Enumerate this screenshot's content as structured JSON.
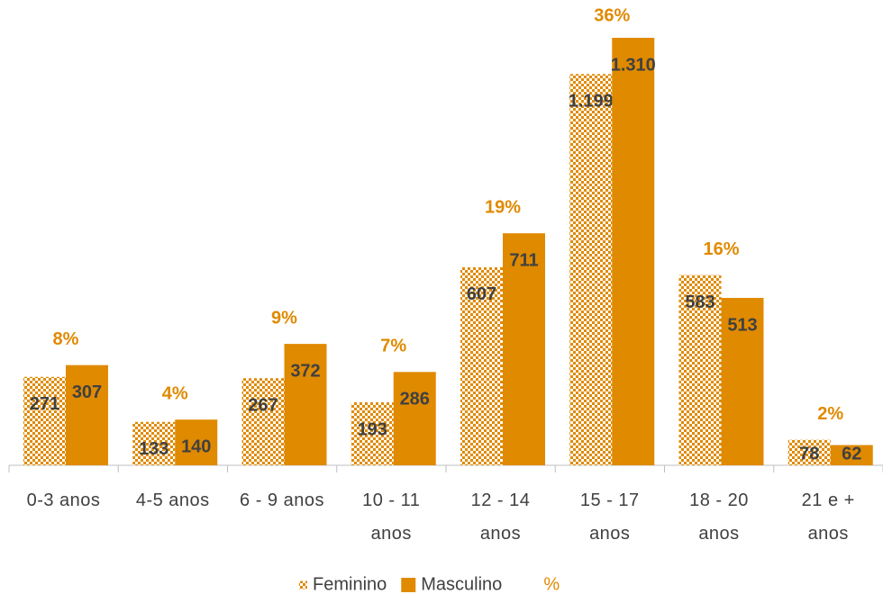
{
  "chart_data": {
    "type": "bar",
    "categories": [
      "0-3 anos",
      "4-5 anos",
      "6 - 9 anos",
      "10 - 11\nanos",
      "12 - 14\nanos",
      "15 - 17\nanos",
      "18 - 20\nanos",
      "21 e +\nanos"
    ],
    "series": [
      {
        "name": "Feminino",
        "color": "#e08a00",
        "pattern": "checker",
        "values": [
          271,
          133,
          267,
          193,
          607,
          1199,
          583,
          78
        ],
        "value_labels": [
          "271",
          "133",
          "267",
          "193",
          "607",
          "1.199",
          "583",
          "78"
        ]
      },
      {
        "name": "Masculino",
        "color": "#e08a00",
        "values": [
          307,
          140,
          372,
          286,
          711,
          1310,
          513,
          62
        ],
        "value_labels": [
          "307",
          "140",
          "372",
          "286",
          "711",
          "1.310",
          "513",
          "62"
        ]
      }
    ],
    "percent": {
      "name": "%",
      "color": "#e08a00",
      "values": [
        8,
        4,
        9,
        7,
        19,
        36,
        16,
        2
      ],
      "value_labels": [
        "8%",
        "4%",
        "9%",
        "7%",
        "19%",
        "36%",
        "16%",
        "2%"
      ]
    },
    "legend": "bottom"
  }
}
